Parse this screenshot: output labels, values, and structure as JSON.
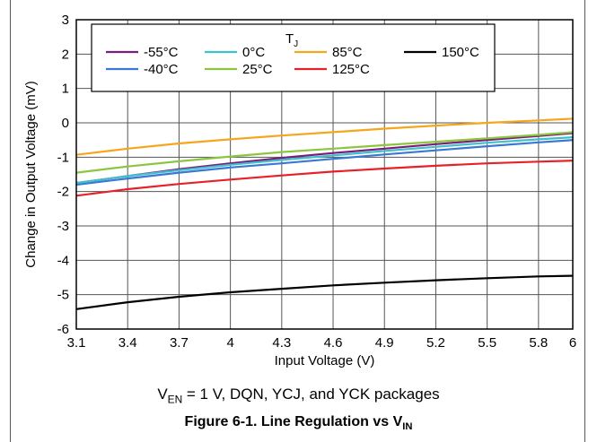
{
  "chart_data": {
    "type": "line",
    "xlabel": "Input Voltage (V)",
    "ylabel": "Change in Output Voltage (mV)",
    "xlim": [
      3.1,
      6
    ],
    "ylim": [
      -6,
      3
    ],
    "x_ticks": [
      "3.1",
      "3.4",
      "3.7",
      "4",
      "4.3",
      "4.6",
      "4.9",
      "5.2",
      "5.5",
      "5.8",
      "6"
    ],
    "y_ticks": [
      "3",
      "2",
      "1",
      "0",
      "-1",
      "-2",
      "-3",
      "-4",
      "-5",
      "-6"
    ],
    "grid": true,
    "legend": {
      "title_main": "T",
      "title_sub": "J",
      "position": "top-right"
    },
    "x": [
      3.1,
      3.4,
      3.7,
      4.0,
      4.3,
      4.6,
      4.9,
      5.2,
      5.5,
      5.8,
      6.0
    ],
    "series": [
      {
        "name": "-55°C",
        "color": "#7b1e7a",
        "values": [
          -1.75,
          -1.55,
          -1.35,
          -1.18,
          -1.02,
          -0.88,
          -0.75,
          -0.62,
          -0.5,
          -0.38,
          -0.3
        ]
      },
      {
        "name": "-40°C",
        "color": "#3a78d4",
        "values": [
          -1.8,
          -1.62,
          -1.45,
          -1.3,
          -1.18,
          -1.05,
          -0.92,
          -0.8,
          -0.68,
          -0.57,
          -0.5
        ]
      },
      {
        "name": "0°C",
        "color": "#40c0cc",
        "values": [
          -1.75,
          -1.55,
          -1.38,
          -1.22,
          -1.08,
          -0.95,
          -0.82,
          -0.7,
          -0.58,
          -0.48,
          -0.42
        ]
      },
      {
        "name": "25°C",
        "color": "#8cc63f",
        "values": [
          -1.45,
          -1.27,
          -1.12,
          -0.98,
          -0.85,
          -0.75,
          -0.65,
          -0.55,
          -0.45,
          -0.35,
          -0.27
        ]
      },
      {
        "name": "85°C",
        "color": "#f7a51c",
        "values": [
          -0.93,
          -0.75,
          -0.6,
          -0.48,
          -0.37,
          -0.27,
          -0.17,
          -0.08,
          0.0,
          0.07,
          0.12
        ]
      },
      {
        "name": "125°C",
        "color": "#e8202a",
        "values": [
          -2.12,
          -1.93,
          -1.78,
          -1.65,
          -1.53,
          -1.42,
          -1.33,
          -1.25,
          -1.18,
          -1.13,
          -1.1
        ]
      },
      {
        "name": "150°C",
        "color": "#000000",
        "values": [
          -5.42,
          -5.22,
          -5.06,
          -4.93,
          -4.83,
          -4.73,
          -4.65,
          -4.58,
          -4.52,
          -4.47,
          -4.45
        ]
      }
    ]
  },
  "condition": {
    "prefix": "V",
    "sub": "EN",
    "text": " = 1 V, DQN, YCJ, and YCK packages"
  },
  "caption": {
    "text": "Figure 6-1. Line Regulation vs V",
    "sub": "IN"
  }
}
